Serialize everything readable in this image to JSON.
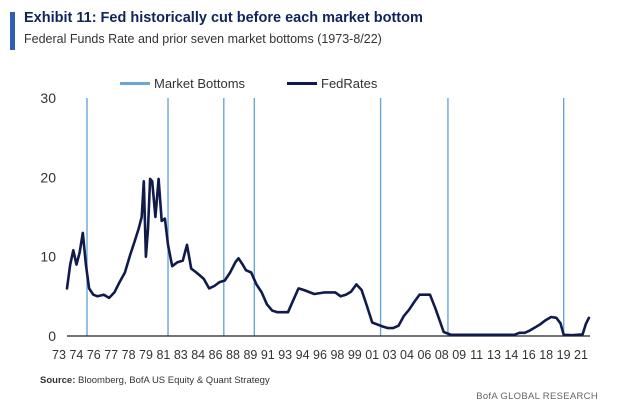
{
  "header": {
    "title": "Exhibit 11: Fed historically cut before each market bottom",
    "subtitle": "Federal Funds Rate and prior seven market bottoms (1973-8/22)"
  },
  "footer": {
    "source_label": "Source:",
    "source_text": "Bloomberg, BofA US Equity & Quant Strategy",
    "brand": "BofA GLOBAL RESEARCH"
  },
  "colors": {
    "title": "#10245c",
    "accent": "#2f5fb3",
    "fedrates_line": "#101b4c",
    "market_bottoms": "#6aa6d8",
    "axis": "#222222",
    "tick_text": "#333333"
  },
  "chart_data": {
    "type": "line",
    "title": "Exhibit 11: Fed historically cut before each market bottom",
    "subtitle": "Federal Funds Rate and prior seven market bottoms (1973-8/22)",
    "xlabel": "",
    "ylabel": "",
    "xlim": [
      1973,
      2022.7
    ],
    "ylim": [
      0,
      30
    ],
    "yticks": [
      0,
      10,
      20,
      30
    ],
    "xtick_labels": [
      "73",
      "74",
      "76",
      "77",
      "78",
      "79",
      "81",
      "83",
      "84",
      "86",
      "88",
      "89",
      "91",
      "93",
      "94",
      "96",
      "98",
      "99",
      "01",
      "03",
      "04",
      "06",
      "08",
      "09",
      "11",
      "13",
      "14",
      "16",
      "18",
      "19",
      "21"
    ],
    "grid": false,
    "legend": {
      "position": "top",
      "entries": [
        {
          "label": "Market Bottoms",
          "type": "vertical-lines"
        },
        {
          "label": "FedRates",
          "type": "line"
        }
      ]
    },
    "series": [
      {
        "name": "FedRates",
        "x": [
          1973.0,
          1973.3,
          1973.6,
          1973.9,
          1974.2,
          1974.5,
          1974.8,
          1975.1,
          1975.5,
          1975.9,
          1976.5,
          1977.0,
          1977.5,
          1978.0,
          1978.5,
          1979.0,
          1979.4,
          1979.8,
          1980.1,
          1980.3,
          1980.5,
          1980.7,
          1980.9,
          1981.1,
          1981.4,
          1981.7,
          1982.0,
          1982.3,
          1982.6,
          1983.0,
          1983.5,
          1984.0,
          1984.4,
          1984.8,
          1985.3,
          1986.0,
          1986.5,
          1987.0,
          1987.5,
          1988.0,
          1988.5,
          1989.0,
          1989.3,
          1989.7,
          1990.0,
          1990.5,
          1991.0,
          1991.5,
          1992.0,
          1992.5,
          1993.0,
          1994.0,
          1994.5,
          1995.0,
          1995.5,
          1996.5,
          1997.5,
          1998.5,
          1999.0,
          1999.5,
          2000.0,
          2000.5,
          2001.0,
          2001.5,
          2002.0,
          2003.0,
          2003.5,
          2004.0,
          2004.5,
          2005.0,
          2005.5,
          2006.0,
          2006.5,
          2007.0,
          2007.5,
          2008.0,
          2008.4,
          2008.8,
          2009.5,
          2012.0,
          2014.0,
          2015.5,
          2016.0,
          2016.5,
          2017.0,
          2017.5,
          2018.0,
          2018.5,
          2019.0,
          2019.5,
          2019.9,
          2020.2,
          2021.0,
          2022.0,
          2022.3,
          2022.6
        ],
        "values": [
          6.0,
          9.0,
          10.8,
          9.0,
          10.5,
          13.0,
          9.0,
          6.0,
          5.2,
          5.0,
          5.2,
          4.8,
          5.5,
          6.8,
          8.0,
          10.2,
          11.8,
          13.5,
          15.0,
          19.5,
          10.0,
          13.5,
          19.8,
          19.5,
          15.0,
          19.8,
          14.5,
          14.8,
          11.5,
          8.8,
          9.3,
          9.5,
          11.5,
          8.5,
          8.0,
          7.2,
          6.0,
          6.3,
          6.8,
          7.0,
          8.0,
          9.3,
          9.8,
          9.0,
          8.3,
          8.0,
          6.5,
          5.5,
          4.0,
          3.2,
          3.0,
          3.0,
          4.5,
          6.0,
          5.8,
          5.3,
          5.5,
          5.5,
          5.0,
          5.2,
          5.6,
          6.5,
          5.8,
          3.8,
          1.7,
          1.2,
          1.0,
          1.0,
          1.3,
          2.5,
          3.3,
          4.3,
          5.2,
          5.2,
          5.2,
          3.5,
          2.0,
          0.5,
          0.15,
          0.15,
          0.15,
          0.15,
          0.4,
          0.4,
          0.7,
          1.1,
          1.5,
          2.0,
          2.4,
          2.3,
          1.6,
          0.15,
          0.1,
          0.2,
          1.5,
          2.3
        ]
      }
    ],
    "market_bottoms": [
      1974.9,
      1982.6,
      1987.9,
      1990.8,
      2002.8,
      2009.2,
      2020.2
    ]
  }
}
